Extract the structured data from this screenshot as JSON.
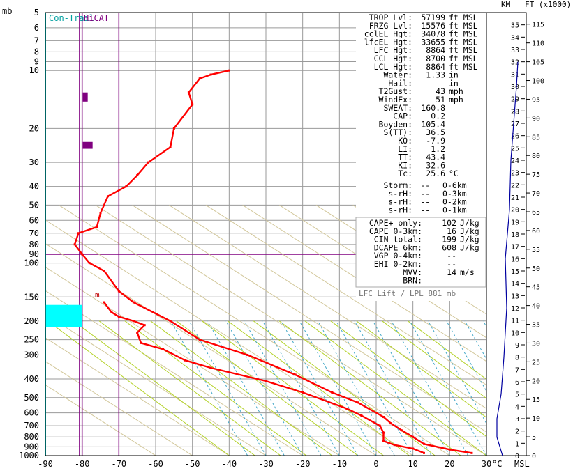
{
  "chart_data": {
    "type": "line",
    "pressure_axis": {
      "unit_label": "mb",
      "scale": "log",
      "range": [
        1000,
        5
      ],
      "ticks": [
        5,
        6,
        7,
        8,
        9,
        10,
        20,
        30,
        40,
        50,
        60,
        70,
        80,
        90,
        100,
        150,
        200,
        250,
        300,
        400,
        500,
        600,
        700,
        800,
        900,
        1000
      ]
    },
    "temperature_axis": {
      "unit_label": "°C",
      "range": [
        -90,
        30
      ],
      "ticks": [
        -90,
        -80,
        -70,
        -60,
        -50,
        -40,
        -30,
        -20,
        -10,
        0,
        10,
        20,
        30
      ]
    },
    "height_axis": {
      "km_label": "KM",
      "ft_label": "FT (x1000)",
      "msl_label": "MSL",
      "km_ticks": [
        0,
        1,
        2,
        3,
        4,
        5,
        6,
        7,
        8,
        9,
        10,
        11,
        12,
        13,
        14,
        15,
        16,
        17,
        18,
        19,
        20,
        21,
        22,
        23,
        24,
        25,
        26,
        27,
        28,
        29,
        30,
        31,
        32,
        33,
        34,
        35
      ],
      "ft_ticks": [
        0,
        5,
        10,
        15,
        20,
        25,
        30,
        35,
        40,
        45,
        50,
        55,
        60,
        65,
        70,
        75,
        80,
        85,
        90,
        95,
        100,
        105,
        110,
        115
      ]
    },
    "zones": [
      {
        "name": "Con-Trail",
        "color": "#00bcbc"
      },
      {
        "name": "HiCAT",
        "color": "#800080"
      }
    ],
    "marker_label": "m",
    "series": [
      {
        "color": "#ff0000",
        "points": [
          [
            26,
            970
          ],
          [
            20,
            930
          ],
          [
            13,
            870
          ],
          [
            10,
            800
          ],
          [
            7,
            740
          ],
          [
            4,
            680
          ],
          [
            2,
            630
          ],
          [
            -5,
            530
          ],
          [
            -12,
            470
          ],
          [
            -22,
            380
          ],
          [
            -35,
            300
          ],
          [
            -48,
            250
          ],
          [
            -56,
            200
          ],
          [
            -66,
            160
          ],
          [
            -70,
            140
          ],
          [
            -74,
            110
          ],
          [
            -78,
            100
          ],
          [
            -80,
            90
          ],
          [
            -82,
            80
          ],
          [
            -81,
            70
          ],
          [
            -76,
            65
          ],
          [
            -75,
            55
          ],
          [
            -73,
            45
          ],
          [
            -68,
            40
          ],
          [
            -65,
            35
          ],
          [
            -62,
            30
          ],
          [
            -56,
            25
          ],
          [
            -55,
            20
          ],
          [
            -50,
            15
          ],
          [
            -51,
            13
          ],
          [
            -48,
            11
          ],
          [
            -45,
            10.5
          ],
          [
            -40,
            10
          ]
        ]
      },
      {
        "color": "#ff0000",
        "points": [
          [
            13,
            970
          ],
          [
            10,
            920
          ],
          [
            5,
            880
          ],
          [
            2,
            840
          ],
          [
            2,
            760
          ],
          [
            1,
            700
          ],
          [
            -4,
            620
          ],
          [
            -8,
            570
          ],
          [
            -20,
            470
          ],
          [
            -30,
            410
          ],
          [
            -45,
            350
          ],
          [
            -52,
            320
          ],
          [
            -58,
            280
          ],
          [
            -64,
            260
          ],
          [
            -65,
            230
          ],
          [
            -63,
            210
          ],
          [
            -66,
            200
          ],
          [
            -70,
            190
          ],
          [
            -72,
            180
          ],
          [
            -73,
            170
          ],
          [
            -74,
            160
          ]
        ]
      }
    ],
    "indices": [
      {
        "label": "TROP Lvl:",
        "value": "57199",
        "unit": "ft MSL"
      },
      {
        "label": "FRZG Lvl:",
        "value": "15576",
        "unit": "ft MSL"
      },
      {
        "label": "cclEL Hgt:",
        "value": "34078",
        "unit": "ft MSL"
      },
      {
        "label": "lfcEL Hgt:",
        "value": "33655",
        "unit": "ft MSL"
      },
      {
        "label": "LFC Hgt:",
        "value": "8864",
        "unit": "ft MSL"
      },
      {
        "label": "CCL Hgt:",
        "value": "8700",
        "unit": "ft MSL"
      },
      {
        "label": "LCL Hgt:",
        "value": "8864",
        "unit": "ft MSL"
      },
      {
        "label": "Water:",
        "value": "1.33",
        "unit": "in"
      },
      {
        "label": "Hail:",
        "value": "--",
        "unit": "in"
      },
      {
        "label": "T2Gust:",
        "value": "43",
        "unit": "mph"
      },
      {
        "label": "WindEx:",
        "value": "51",
        "unit": "mph"
      },
      {
        "label": "SWEAT:",
        "value": "160.8",
        "unit": ""
      },
      {
        "label": "CAP:",
        "value": "0.2",
        "unit": ""
      },
      {
        "label": "Boyden:",
        "value": "105.4",
        "unit": ""
      },
      {
        "label": "S(TT):",
        "value": "36.5",
        "unit": ""
      },
      {
        "label": "KO:",
        "value": "-7.9",
        "unit": ""
      },
      {
        "label": "LI:",
        "value": "1.2",
        "unit": ""
      },
      {
        "label": "TT:",
        "value": "43.4",
        "unit": ""
      },
      {
        "label": "KI:",
        "value": "32.6",
        "unit": ""
      },
      {
        "label": "Tc:",
        "value": "25.6",
        "unit": "°C"
      }
    ],
    "helicity": [
      {
        "label": "Storm:",
        "value": "--",
        "unit": "0-6km"
      },
      {
        "label": "s-rH:",
        "value": "--",
        "unit": "0-3km"
      },
      {
        "label": "s-rH:",
        "value": "--",
        "unit": "0-2km"
      },
      {
        "label": "s-rH:",
        "value": "--",
        "unit": "0-1km"
      }
    ],
    "energy": [
      {
        "label": "CAPE+ only:",
        "value": "102",
        "unit": "J/kg"
      },
      {
        "label": "CAPE 0-3km:",
        "value": "16",
        "unit": "J/kg"
      },
      {
        "label": "CIN total:",
        "value": "-199",
        "unit": "J/kg"
      },
      {
        "label": "DCAPE 6km:",
        "value": "608",
        "unit": "J/kg"
      },
      {
        "label": "VGP 0-4km:",
        "value": "--",
        "unit": ""
      },
      {
        "label": "EHI 0-2km:",
        "value": "--",
        "unit": ""
      },
      {
        "label": "MVV:",
        "value": "14",
        "unit": "m/s"
      },
      {
        "label": "BRN:",
        "value": "--",
        "unit": ""
      }
    ],
    "lift_caption": "LFC Lift / LPL 881 mb"
  }
}
